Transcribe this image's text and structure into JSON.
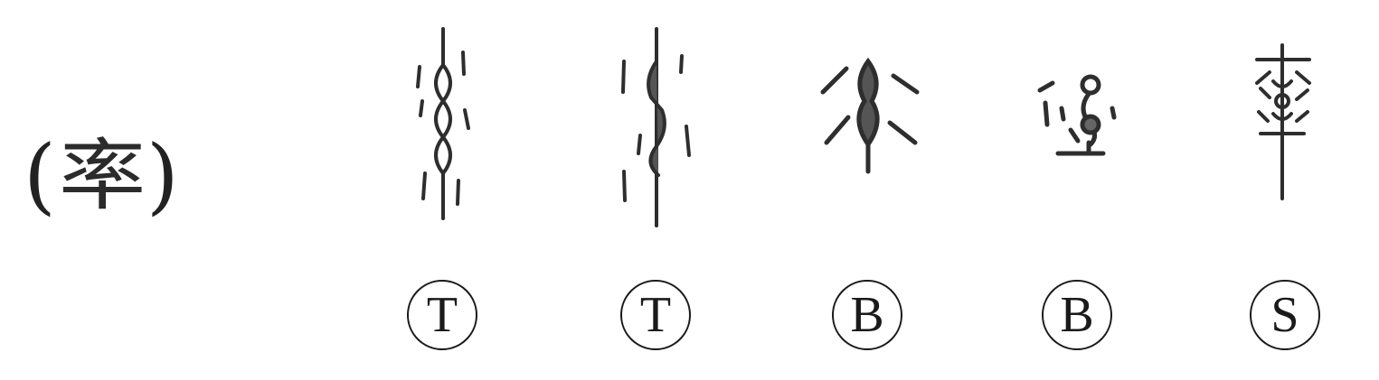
{
  "headword": {
    "open_paren": "(",
    "character": "率",
    "close_paren": ")"
  },
  "forms": [
    {
      "script_label": "T",
      "icon": "oracle-bone-form-1-icon"
    },
    {
      "script_label": "T",
      "icon": "oracle-bone-form-2-icon"
    },
    {
      "script_label": "B",
      "icon": "bronze-form-1-icon"
    },
    {
      "script_label": "B",
      "icon": "bronze-form-2-icon"
    },
    {
      "script_label": "S",
      "icon": "seal-form-icon"
    }
  ]
}
